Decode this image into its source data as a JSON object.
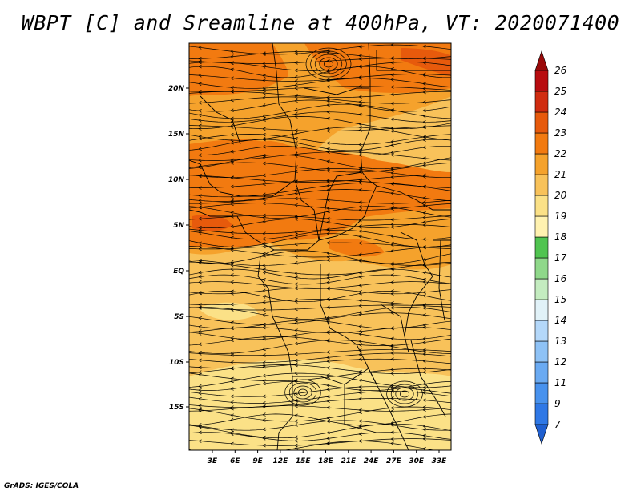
{
  "title": "WBPT [C] and Sreamline at 400hPa, VT: 2020071400",
  "credit": "GrADS: IGES/COLA",
  "map": {
    "lat_ticks": [
      "20N",
      "15N",
      "10N",
      "5N",
      "EQ",
      "5S",
      "10S",
      "15S"
    ],
    "lon_ticks": [
      "3E",
      "6E",
      "9E",
      "12E",
      "15E",
      "18E",
      "21E",
      "24E",
      "27E",
      "30E",
      "33E"
    ]
  },
  "colorbar": {
    "levels": [
      "7",
      "9",
      "11",
      "12",
      "13",
      "14",
      "15",
      "16",
      "17",
      "18",
      "19",
      "20",
      "21",
      "22",
      "23",
      "24",
      "25",
      "26"
    ],
    "colors": [
      "#1f5fd0",
      "#2f78e6",
      "#4892ee",
      "#6aaaf2",
      "#8ec2f6",
      "#b4d8fa",
      "#e1f2f8",
      "#c4ecc0",
      "#8fd88a",
      "#50c450",
      "#fff2b0",
      "#fbe187",
      "#f8c25a",
      "#f5a22c",
      "#f27a10",
      "#e75a0c",
      "#d02c10",
      "#b80c10",
      "#9a0a0a"
    ],
    "under_color": "#1f5fd0",
    "over_color": "#9a0a0a"
  },
  "field_colors": {
    "c20": "#fbe187",
    "c21": "#f8c25a",
    "c22": "#f5a22c",
    "c23": "#f27a10",
    "c24": "#e75a0c"
  },
  "line_color": "#000000"
}
